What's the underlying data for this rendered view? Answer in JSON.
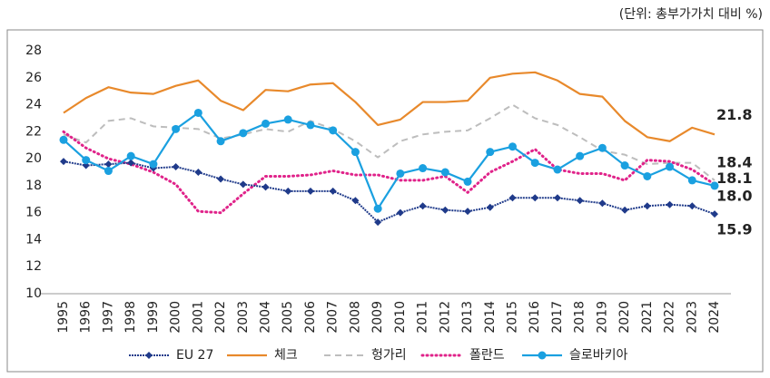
{
  "chart_data": {
    "type": "line",
    "unit_note": "(단위: 총부가가치 대비 %)",
    "categories": [
      "1995",
      "1996",
      "1997",
      "1998",
      "1999",
      "2000",
      "2001",
      "2002",
      "2003",
      "2004",
      "2005",
      "2006",
      "2007",
      "2008",
      "2009",
      "2010",
      "2011",
      "2012",
      "2013",
      "2014",
      "2015",
      "2016",
      "2017",
      "2018",
      "2019",
      "2020",
      "2021",
      "2022",
      "2023",
      "2024"
    ],
    "ylim": [
      10,
      28
    ],
    "yticks": [
      10,
      12,
      14,
      16,
      18,
      20,
      22,
      24,
      26,
      28
    ],
    "grid": false,
    "legend": "bottom",
    "series": [
      {
        "name": "EU 27",
        "color": "#1f3a8a",
        "style": "diamond",
        "values": [
          19.8,
          19.5,
          19.6,
          19.7,
          19.3,
          19.4,
          19.0,
          18.5,
          18.1,
          17.9,
          17.6,
          17.6,
          17.6,
          16.9,
          15.3,
          16.0,
          16.5,
          16.2,
          16.1,
          16.4,
          17.1,
          17.1,
          17.1,
          16.9,
          16.7,
          16.2,
          16.5,
          16.6,
          16.5,
          15.9
        ],
        "value_labels": [
          null,
          null,
          null,
          null,
          null,
          null,
          null,
          null,
          null,
          null,
          null,
          null,
          null,
          null,
          null,
          null,
          null,
          null,
          null,
          null,
          null,
          null,
          null,
          null,
          null,
          null,
          null,
          null,
          null,
          "15.9"
        ]
      },
      {
        "name": "체크",
        "color": "#e8892b",
        "style": "solid",
        "values": [
          23.4,
          24.5,
          25.3,
          24.9,
          24.8,
          25.4,
          25.8,
          24.3,
          23.6,
          25.1,
          25.0,
          25.5,
          25.6,
          24.2,
          22.5,
          22.9,
          24.2,
          24.2,
          24.3,
          26.0,
          26.3,
          26.4,
          25.8,
          24.8,
          24.6,
          22.8,
          21.6,
          21.3,
          22.3,
          21.8
        ],
        "value_labels": [
          null,
          null,
          null,
          null,
          null,
          null,
          null,
          null,
          null,
          null,
          null,
          null,
          null,
          null,
          null,
          null,
          null,
          null,
          null,
          null,
          null,
          null,
          null,
          null,
          null,
          null,
          null,
          null,
          null,
          "21.8"
        ]
      },
      {
        "name": "헝가리",
        "color": "#bdbdbd",
        "style": "dashed",
        "values": [
          21.8,
          21.2,
          22.8,
          23.0,
          22.4,
          22.3,
          22.2,
          21.5,
          21.8,
          22.2,
          22.0,
          22.8,
          22.2,
          21.3,
          20.1,
          21.3,
          21.8,
          22.0,
          22.1,
          23.0,
          24.0,
          23.0,
          22.5,
          21.6,
          20.6,
          20.3,
          19.6,
          19.7,
          19.7,
          18.4
        ],
        "value_labels": [
          null,
          null,
          null,
          null,
          null,
          null,
          null,
          null,
          null,
          null,
          null,
          null,
          null,
          null,
          null,
          null,
          null,
          null,
          null,
          null,
          null,
          null,
          null,
          null,
          null,
          null,
          null,
          null,
          null,
          "18.4"
        ]
      },
      {
        "name": "폴란드",
        "color": "#e0238a",
        "style": "dotted",
        "values": [
          22.0,
          20.8,
          20.0,
          19.6,
          19.0,
          18.1,
          16.1,
          16.0,
          17.4,
          18.7,
          18.7,
          18.8,
          19.1,
          18.8,
          18.8,
          18.4,
          18.4,
          18.7,
          17.5,
          19.0,
          19.8,
          20.7,
          19.2,
          18.9,
          18.9,
          18.4,
          19.9,
          19.8,
          19.2,
          18.1
        ],
        "value_labels": [
          null,
          null,
          null,
          null,
          null,
          null,
          null,
          null,
          null,
          null,
          null,
          null,
          null,
          null,
          null,
          null,
          null,
          null,
          null,
          null,
          null,
          null,
          null,
          null,
          null,
          null,
          null,
          null,
          null,
          "18.1"
        ]
      },
      {
        "name": "슬로바키아",
        "color": "#1aa0e0",
        "style": "circle",
        "values": [
          21.4,
          19.9,
          19.1,
          20.2,
          19.6,
          22.2,
          23.4,
          21.3,
          21.9,
          22.6,
          22.9,
          22.5,
          22.1,
          20.5,
          16.3,
          18.9,
          19.3,
          19.0,
          18.3,
          20.5,
          20.9,
          19.7,
          19.2,
          20.2,
          20.8,
          19.5,
          18.7,
          19.4,
          18.4,
          18.0
        ],
        "value_labels": [
          null,
          null,
          null,
          null,
          null,
          null,
          null,
          null,
          null,
          null,
          null,
          null,
          null,
          null,
          null,
          null,
          null,
          null,
          null,
          null,
          null,
          null,
          null,
          null,
          null,
          null,
          null,
          null,
          null,
          "18.0"
        ]
      }
    ]
  }
}
